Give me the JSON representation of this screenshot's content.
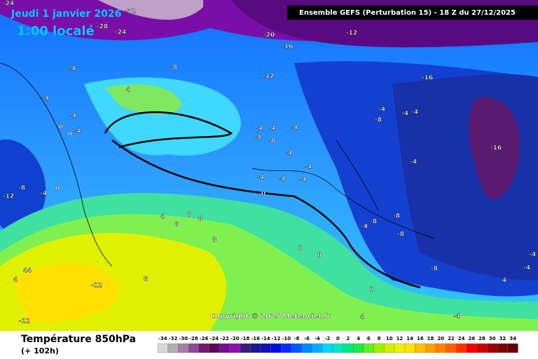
{
  "header": {
    "date": "Jeudi 1 janvier 2026",
    "time": "1:00 localé",
    "model": "Ensemble GEFS  (Perturbation 15)  -  18 Z du 27/12/2025"
  },
  "copyright": "Copyright © 2025 Meteociel.fr",
  "footer": {
    "variable": "Température 850hPa",
    "lead_time": "(+ 102h)"
  },
  "map_labels": [
    -24,
    -32,
    -28,
    -24,
    -20,
    -12,
    -16,
    -8,
    -4,
    -12,
    -16,
    4,
    -4,
    -4,
    0,
    0,
    -4,
    -4,
    -4,
    -8,
    -4,
    -4,
    -4,
    -4,
    -4,
    -4,
    -4,
    0,
    -8,
    -4,
    0,
    -12,
    -8,
    -4,
    -4,
    -4,
    -4,
    -16,
    -8,
    -4,
    -8,
    -8,
    4,
    8,
    8,
    8,
    8,
    0,
    0,
    -8,
    -4,
    -4,
    4,
    8,
    -12,
    4,
    4,
    4,
    -12,
    0,
    4,
    -4
  ],
  "legend": {
    "values": [
      -34,
      -32,
      -30,
      -28,
      -26,
      -24,
      -22,
      -20,
      -18,
      -16,
      -14,
      -12,
      -10,
      -8,
      -6,
      -4,
      -2,
      0,
      2,
      4,
      6,
      8,
      10,
      12,
      14,
      16,
      18,
      20,
      22,
      24,
      26,
      28,
      30,
      32,
      34
    ],
    "colors": [
      "#d8d8d8",
      "#b0b0b0",
      "#a080a8",
      "#904898",
      "#701870",
      "#580a58",
      "#780a90",
      "#9010b0",
      "#3a1a80",
      "#1a1a90",
      "#1010b8",
      "#0010e0",
      "#0030ff",
      "#0058ff",
      "#0088ff",
      "#00b0ff",
      "#00d8ff",
      "#00e8c0",
      "#00e880",
      "#20e840",
      "#60f020",
      "#a0f000",
      "#d0f000",
      "#f0f000",
      "#ffe000",
      "#ffc000",
      "#ffa000",
      "#ff8000",
      "#ff6000",
      "#ff3000",
      "#f00000",
      "#d00000",
      "#a00000",
      "#800000",
      "#600000"
    ]
  }
}
